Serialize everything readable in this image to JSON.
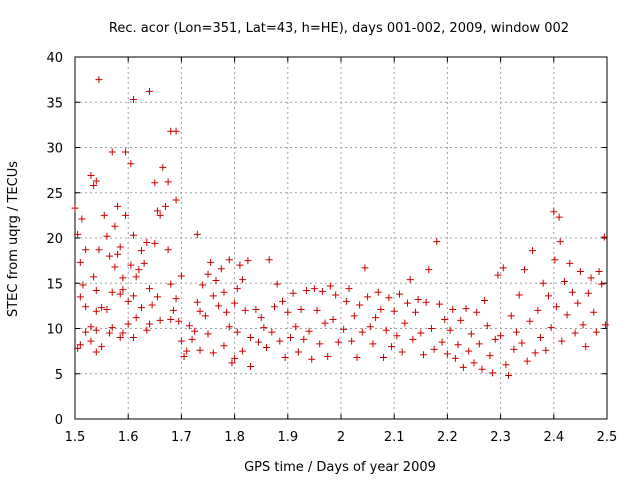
{
  "chart_data": {
    "type": "scatter",
    "title": "Rec. acor (Lon=351, Lat=43, h=HE), days 001-002, 2009, window 002",
    "xlabel": "GPS time / Days of year 2009",
    "ylabel": "STEC from uqrg / TECUs",
    "xlim": [
      1.5,
      2.5
    ],
    "ylim": [
      0,
      40
    ],
    "grid": true,
    "marker": "plus",
    "color": "#cc0000",
    "x_ticks": [
      "1.5",
      "1.6",
      "1.7",
      "1.8",
      "1.9",
      "2",
      "2.1",
      "2.2",
      "2.3",
      "2.4",
      "2.5"
    ],
    "y_ticks": [
      "0",
      "5",
      "10",
      "15",
      "20",
      "25",
      "30",
      "35",
      "40"
    ],
    "series": [
      {
        "name": "STEC",
        "points": [
          [
            1.5,
            23.3
          ],
          [
            1.505,
            20.4
          ],
          [
            1.51,
            17.3
          ],
          [
            1.513,
            22.1
          ],
          [
            1.52,
            18.7
          ],
          [
            1.515,
            14.8
          ],
          [
            1.51,
            13.5
          ],
          [
            1.52,
            12.4
          ],
          [
            1.52,
            9.6
          ],
          [
            1.51,
            8.2
          ],
          [
            1.505,
            7.8
          ],
          [
            1.53,
            26.9
          ],
          [
            1.535,
            25.8
          ],
          [
            1.54,
            26.3
          ],
          [
            1.545,
            37.5
          ],
          [
            1.545,
            18.7
          ],
          [
            1.535,
            15.7
          ],
          [
            1.54,
            14.2
          ],
          [
            1.54,
            11.9
          ],
          [
            1.55,
            12.3
          ],
          [
            1.53,
            10.2
          ],
          [
            1.54,
            9.8
          ],
          [
            1.53,
            8.6
          ],
          [
            1.55,
            8.0
          ],
          [
            1.54,
            7.4
          ],
          [
            1.555,
            22.5
          ],
          [
            1.56,
            20.2
          ],
          [
            1.565,
            18.0
          ],
          [
            1.57,
            29.5
          ],
          [
            1.57,
            14.0
          ],
          [
            1.56,
            12.1
          ],
          [
            1.575,
            21.3
          ],
          [
            1.58,
            23.5
          ],
          [
            1.58,
            18.2
          ],
          [
            1.575,
            16.8
          ],
          [
            1.57,
            10.1
          ],
          [
            1.565,
            9.5
          ],
          [
            1.585,
            19.0
          ],
          [
            1.59,
            15.6
          ],
          [
            1.595,
            29.5
          ],
          [
            1.595,
            22.5
          ],
          [
            1.59,
            14.3
          ],
          [
            1.585,
            13.8
          ],
          [
            1.585,
            9.0
          ],
          [
            1.59,
            9.5
          ],
          [
            1.6,
            13.0
          ],
          [
            1.6,
            10.5
          ],
          [
            1.605,
            28.2
          ],
          [
            1.61,
            35.3
          ],
          [
            1.61,
            20.3
          ],
          [
            1.605,
            17.0
          ],
          [
            1.61,
            13.6
          ],
          [
            1.615,
            15.7
          ],
          [
            1.615,
            11.2
          ],
          [
            1.61,
            9.0
          ],
          [
            1.62,
            16.5
          ],
          [
            1.625,
            18.6
          ],
          [
            1.625,
            12.3
          ],
          [
            1.63,
            17.2
          ],
          [
            1.635,
            19.5
          ],
          [
            1.64,
            36.2
          ],
          [
            1.64,
            14.4
          ],
          [
            1.645,
            12.6
          ],
          [
            1.64,
            10.5
          ],
          [
            1.635,
            9.8
          ],
          [
            1.65,
            26.1
          ],
          [
            1.655,
            23.0
          ],
          [
            1.65,
            19.4
          ],
          [
            1.66,
            22.5
          ],
          [
            1.655,
            13.5
          ],
          [
            1.66,
            10.9
          ],
          [
            1.665,
            27.8
          ],
          [
            1.67,
            23.5
          ],
          [
            1.675,
            26.2
          ],
          [
            1.675,
            18.7
          ],
          [
            1.68,
            31.8
          ],
          [
            1.68,
            14.9
          ],
          [
            1.685,
            12.0
          ],
          [
            1.68,
            11.0
          ],
          [
            1.69,
            31.8
          ],
          [
            1.69,
            24.2
          ],
          [
            1.69,
            13.3
          ],
          [
            1.695,
            10.8
          ],
          [
            1.7,
            15.8
          ],
          [
            1.7,
            8.6
          ],
          [
            1.705,
            6.9
          ],
          [
            1.71,
            7.5
          ],
          [
            1.715,
            10.3
          ],
          [
            1.72,
            8.8
          ],
          [
            1.725,
            9.7
          ],
          [
            1.73,
            20.4
          ],
          [
            1.73,
            12.9
          ],
          [
            1.735,
            11.9
          ],
          [
            1.735,
            7.6
          ],
          [
            1.74,
            14.8
          ],
          [
            1.745,
            11.4
          ],
          [
            1.75,
            16.0
          ],
          [
            1.75,
            9.4
          ],
          [
            1.755,
            17.3
          ],
          [
            1.76,
            13.6
          ],
          [
            1.76,
            7.3
          ],
          [
            1.765,
            15.3
          ],
          [
            1.77,
            12.5
          ],
          [
            1.775,
            16.6
          ],
          [
            1.78,
            14.0
          ],
          [
            1.78,
            8.1
          ],
          [
            1.785,
            11.8
          ],
          [
            1.79,
            17.6
          ],
          [
            1.79,
            10.2
          ],
          [
            1.795,
            6.2
          ],
          [
            1.8,
            6.7
          ],
          [
            1.8,
            12.8
          ],
          [
            1.805,
            14.4
          ],
          [
            1.805,
            9.6
          ],
          [
            1.81,
            17.0
          ],
          [
            1.815,
            15.4
          ],
          [
            1.815,
            7.5
          ],
          [
            1.82,
            12.0
          ],
          [
            1.825,
            17.5
          ],
          [
            1.83,
            9.0
          ],
          [
            1.83,
            5.8
          ],
          [
            1.84,
            12.1
          ],
          [
            1.845,
            8.5
          ],
          [
            1.85,
            11.2
          ],
          [
            1.855,
            10.1
          ],
          [
            1.86,
            7.9
          ],
          [
            1.865,
            17.6
          ],
          [
            1.87,
            9.6
          ],
          [
            1.875,
            12.4
          ],
          [
            1.88,
            14.9
          ],
          [
            1.885,
            8.6
          ],
          [
            1.89,
            13.0
          ],
          [
            1.895,
            6.8
          ],
          [
            1.9,
            11.8
          ],
          [
            1.905,
            9.0
          ],
          [
            1.91,
            13.9
          ],
          [
            1.915,
            10.2
          ],
          [
            1.92,
            7.4
          ],
          [
            1.925,
            12.1
          ],
          [
            1.93,
            8.8
          ],
          [
            1.935,
            14.2
          ],
          [
            1.94,
            9.7
          ],
          [
            1.945,
            6.6
          ],
          [
            1.95,
            14.4
          ],
          [
            1.955,
            12.0
          ],
          [
            1.96,
            8.3
          ],
          [
            1.965,
            14.1
          ],
          [
            1.97,
            10.6
          ],
          [
            1.975,
            6.9
          ],
          [
            1.98,
            14.7
          ],
          [
            1.985,
            11.0
          ],
          [
            1.99,
            13.7
          ],
          [
            1.995,
            8.5
          ],
          [
            2.005,
            9.9
          ],
          [
            2.01,
            13.0
          ],
          [
            2.015,
            14.4
          ],
          [
            2.02,
            8.6
          ],
          [
            2.025,
            11.4
          ],
          [
            2.03,
            6.8
          ],
          [
            2.035,
            12.6
          ],
          [
            2.04,
            9.6
          ],
          [
            2.045,
            16.7
          ],
          [
            2.05,
            13.5
          ],
          [
            2.055,
            10.2
          ],
          [
            2.06,
            8.3
          ],
          [
            2.065,
            11.2
          ],
          [
            2.07,
            14.0
          ],
          [
            2.075,
            12.1
          ],
          [
            2.08,
            6.8
          ],
          [
            2.085,
            9.8
          ],
          [
            2.09,
            13.4
          ],
          [
            2.095,
            8.0
          ],
          [
            2.1,
            11.9
          ],
          [
            2.105,
            9.2
          ],
          [
            2.11,
            13.8
          ],
          [
            2.115,
            7.4
          ],
          [
            2.12,
            10.6
          ],
          [
            2.125,
            12.8
          ],
          [
            2.13,
            15.4
          ],
          [
            2.135,
            8.8
          ],
          [
            2.14,
            11.8
          ],
          [
            2.145,
            13.2
          ],
          [
            2.15,
            9.5
          ],
          [
            2.155,
            7.1
          ],
          [
            2.16,
            12.9
          ],
          [
            2.165,
            16.5
          ],
          [
            2.17,
            10.0
          ],
          [
            2.175,
            7.7
          ],
          [
            2.18,
            19.6
          ],
          [
            2.185,
            12.7
          ],
          [
            2.19,
            8.5
          ],
          [
            2.195,
            11.0
          ],
          [
            2.2,
            7.2
          ],
          [
            2.205,
            9.8
          ],
          [
            2.21,
            12.1
          ],
          [
            2.215,
            6.7
          ],
          [
            2.22,
            8.2
          ],
          [
            2.225,
            10.9
          ],
          [
            2.23,
            5.7
          ],
          [
            2.235,
            12.2
          ],
          [
            2.24,
            7.5
          ],
          [
            2.245,
            9.4
          ],
          [
            2.25,
            6.2
          ],
          [
            2.255,
            11.8
          ],
          [
            2.26,
            8.3
          ],
          [
            2.265,
            5.5
          ],
          [
            2.27,
            13.1
          ],
          [
            2.275,
            10.3
          ],
          [
            2.28,
            7.0
          ],
          [
            2.285,
            5.1
          ],
          [
            2.29,
            8.8
          ],
          [
            2.295,
            15.9
          ],
          [
            2.3,
            9.2
          ],
          [
            2.305,
            16.7
          ],
          [
            2.31,
            6.0
          ],
          [
            2.315,
            4.8
          ],
          [
            2.32,
            11.4
          ],
          [
            2.325,
            7.7
          ],
          [
            2.33,
            9.6
          ],
          [
            2.335,
            13.7
          ],
          [
            2.34,
            8.4
          ],
          [
            2.345,
            16.5
          ],
          [
            2.35,
            6.4
          ],
          [
            2.355,
            10.8
          ],
          [
            2.36,
            18.6
          ],
          [
            2.365,
            7.3
          ],
          [
            2.37,
            12.0
          ],
          [
            2.375,
            9.0
          ],
          [
            2.38,
            15.0
          ],
          [
            2.385,
            7.6
          ],
          [
            2.39,
            13.6
          ],
          [
            2.395,
            10.1
          ],
          [
            2.4,
            22.9
          ],
          [
            2.402,
            17.6
          ],
          [
            2.405,
            12.4
          ],
          [
            2.41,
            22.3
          ],
          [
            2.412,
            19.6
          ],
          [
            2.415,
            8.6
          ],
          [
            2.42,
            15.2
          ],
          [
            2.425,
            11.5
          ],
          [
            2.43,
            17.2
          ],
          [
            2.435,
            14.0
          ],
          [
            2.44,
            9.5
          ],
          [
            2.445,
            12.8
          ],
          [
            2.45,
            16.3
          ],
          [
            2.455,
            10.4
          ],
          [
            2.46,
            8.0
          ],
          [
            2.465,
            13.9
          ],
          [
            2.47,
            15.6
          ],
          [
            2.475,
            11.8
          ],
          [
            2.48,
            9.6
          ],
          [
            2.485,
            16.3
          ],
          [
            2.49,
            14.9
          ],
          [
            2.495,
            20.1
          ],
          [
            2.497,
            10.4
          ]
        ]
      }
    ]
  }
}
